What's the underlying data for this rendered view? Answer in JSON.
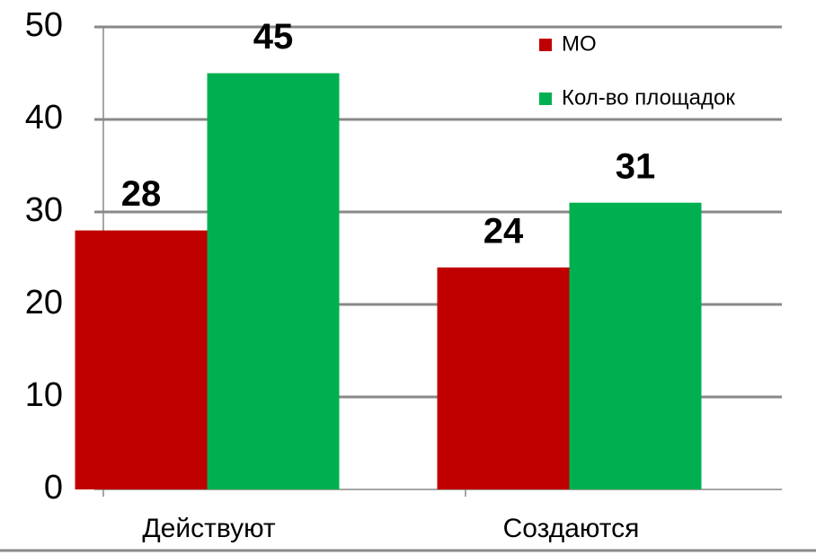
{
  "chart_data": {
    "type": "bar",
    "categories": [
      "Действуют",
      "Создаются"
    ],
    "series": [
      {
        "name": "МО",
        "color": "#c00000",
        "values": [
          28,
          24
        ]
      },
      {
        "name": "Кол-во площадок",
        "color": "#00b050",
        "values": [
          45,
          31
        ]
      }
    ],
    "ylim": [
      0,
      50
    ],
    "yticks": [
      0,
      10,
      20,
      30,
      40,
      50
    ],
    "grid": true,
    "legend": "top-right"
  }
}
